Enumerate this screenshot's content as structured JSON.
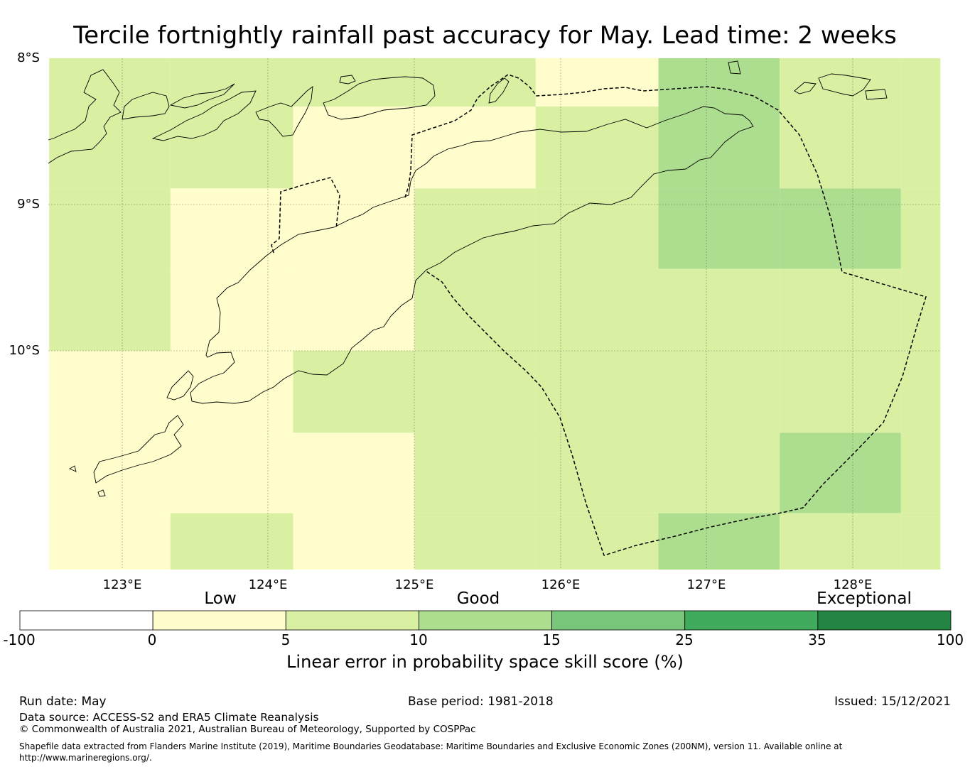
{
  "title": "Tercile fortnightly rainfall past accuracy for May. Lead time: 2 weeks",
  "map": {
    "lat_labels": [
      "8°S",
      "9°S",
      "10°S"
    ],
    "lon_labels": [
      "123°E",
      "124°E",
      "125°E",
      "126°E",
      "127°E",
      "128°E"
    ],
    "grid_columns_lon_edges": [
      122.5,
      123.33,
      124.17,
      125.0,
      125.83,
      126.67,
      127.5,
      128.33,
      128.6
    ],
    "grid_rows_lat_edges": [
      -8.0,
      -8.33,
      -8.89,
      -9.44,
      -10.0,
      -10.56,
      -11.11,
      -11.5
    ],
    "skill_class_grid_note": "class indices per cell; 1 = 0–5 (Low), 2 = 5–10, 3 = 10–15",
    "skill_class_grid": [
      [
        2,
        2,
        2,
        2,
        1,
        3,
        2,
        2
      ],
      [
        2,
        2,
        1,
        1,
        2,
        3,
        2,
        2
      ],
      [
        2,
        1,
        1,
        2,
        2,
        3,
        3,
        2
      ],
      [
        2,
        1,
        1,
        2,
        2,
        2,
        2,
        2
      ],
      [
        1,
        1,
        2,
        2,
        2,
        2,
        2,
        2
      ],
      [
        1,
        1,
        1,
        2,
        2,
        2,
        3,
        2
      ],
      [
        1,
        2,
        1,
        2,
        2,
        3,
        2,
        2
      ]
    ]
  },
  "colorbar": {
    "categories": [
      "Low",
      "Good",
      "Exceptional"
    ],
    "ticks": [
      "-100",
      "0",
      "5",
      "10",
      "15",
      "25",
      "35",
      "100"
    ],
    "colors": [
      "#ffffff",
      "#fefdcb",
      "#d9f0a3",
      "#addd8e",
      "#78c679",
      "#41ab5d",
      "#238443"
    ],
    "label": "Linear error in probability space skill score (%)"
  },
  "footer": {
    "run_date": "Run date: May",
    "base_period": "Base period: 1981-2018",
    "issued": "Issued: 15/12/2021",
    "data_source": "Data source: ACCESS-S2 and ERA5 Climate Reanalysis",
    "copyright": "© Commonwealth of Australia 2021, Australian Bureau of Meteorology, Supported by COSPPac",
    "shapefile": "Shapefile data extracted from Flanders Marine Institute (2019), Maritime Boundaries Geodatabase: Maritime Boundaries and Exclusive Economic Zones (200NM), version 11. Available online at http://www.marineregions.org/."
  }
}
